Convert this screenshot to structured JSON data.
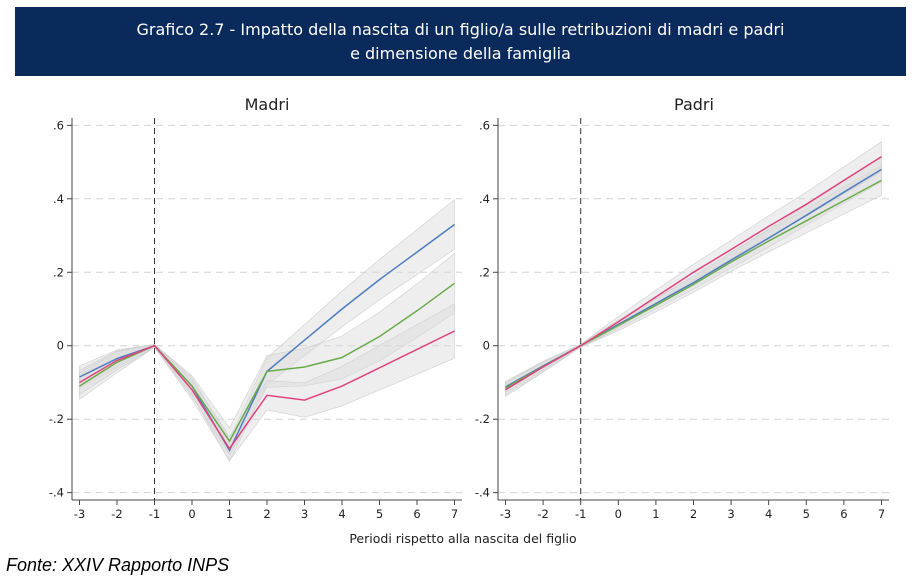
{
  "header": {
    "title_line1": "Grafico 2.7 - Impatto della nascita di un figlio/a sulle retribuzioni di madri e padri",
    "title_line2": "e dimensione della famiglia"
  },
  "source": "Fonte: XXIV Rapporto INPS",
  "colors": {
    "header_bg": "#0b2a5c",
    "blue": "#4f7cc2",
    "green": "#6aaa4a",
    "pink": "#e0437e",
    "band": "#d9d9d9"
  },
  "chart_data": [
    {
      "type": "line",
      "title": "Madri",
      "xlabel": "Periodi rispetto alla nascita del figlio",
      "x": [
        -3,
        -2,
        -1,
        0,
        1,
        2,
        3,
        4,
        5,
        6,
        7
      ],
      "xticks": [
        "-3",
        "-2",
        "-1",
        "0",
        "1",
        "2",
        "3",
        "4",
        "5",
        "6",
        "7"
      ],
      "yticks": [
        "-.4",
        "-.2",
        "0",
        ".2",
        ".4",
        ".6"
      ],
      "ytick_values": [
        -0.4,
        -0.2,
        0,
        0.2,
        0.4,
        0.6
      ],
      "ylim": [
        -0.42,
        0.62
      ],
      "xlim": [
        -3.2,
        7.2
      ],
      "reference_line_x": -1,
      "grid": "horizontal dashed",
      "series": [
        {
          "color": "blue",
          "values": [
            -0.085,
            -0.035,
            0,
            -0.11,
            -0.285,
            -0.07,
            0.015,
            0.1,
            0.18,
            0.255,
            0.33
          ],
          "band": 0.05
        },
        {
          "color": "green",
          "values": [
            -0.11,
            -0.045,
            0,
            -0.11,
            -0.26,
            -0.07,
            -0.058,
            -0.032,
            0.025,
            0.095,
            0.17
          ],
          "band": 0.06
        },
        {
          "color": "pink",
          "values": [
            -0.1,
            -0.04,
            0,
            -0.12,
            -0.28,
            -0.135,
            -0.148,
            -0.11,
            -0.06,
            -0.01,
            0.04
          ],
          "band": 0.055
        }
      ]
    },
    {
      "type": "line",
      "title": "Padri",
      "xlabel": "Periodi rispetto alla nascita del figlio",
      "x": [
        -3,
        -2,
        -1,
        0,
        1,
        2,
        3,
        4,
        5,
        6,
        7
      ],
      "xticks": [
        "-3",
        "-2",
        "-1",
        "0",
        "1",
        "2",
        "3",
        "4",
        "5",
        "6",
        "7"
      ],
      "yticks": [
        "-.4",
        "-.2",
        "0",
        ".2",
        ".4",
        ".6"
      ],
      "ytick_values": [
        -0.4,
        -0.2,
        0,
        0.2,
        0.4,
        0.6
      ],
      "ylim": [
        -0.42,
        0.62
      ],
      "xlim": [
        -3.2,
        7.2
      ],
      "reference_line_x": -1,
      "grid": "horizontal dashed",
      "series": [
        {
          "color": "blue",
          "values": [
            -0.112,
            -0.055,
            0,
            0.058,
            0.115,
            0.172,
            0.233,
            0.293,
            0.355,
            0.418,
            0.48
          ],
          "band": 0.025
        },
        {
          "color": "green",
          "values": [
            -0.115,
            -0.057,
            0,
            0.055,
            0.11,
            0.167,
            0.228,
            0.285,
            0.34,
            0.395,
            0.45
          ],
          "band": 0.03
        },
        {
          "color": "pink",
          "values": [
            -0.12,
            -0.058,
            0,
            0.065,
            0.133,
            0.2,
            0.262,
            0.325,
            0.385,
            0.45,
            0.515
          ],
          "band": 0.03
        }
      ]
    }
  ]
}
